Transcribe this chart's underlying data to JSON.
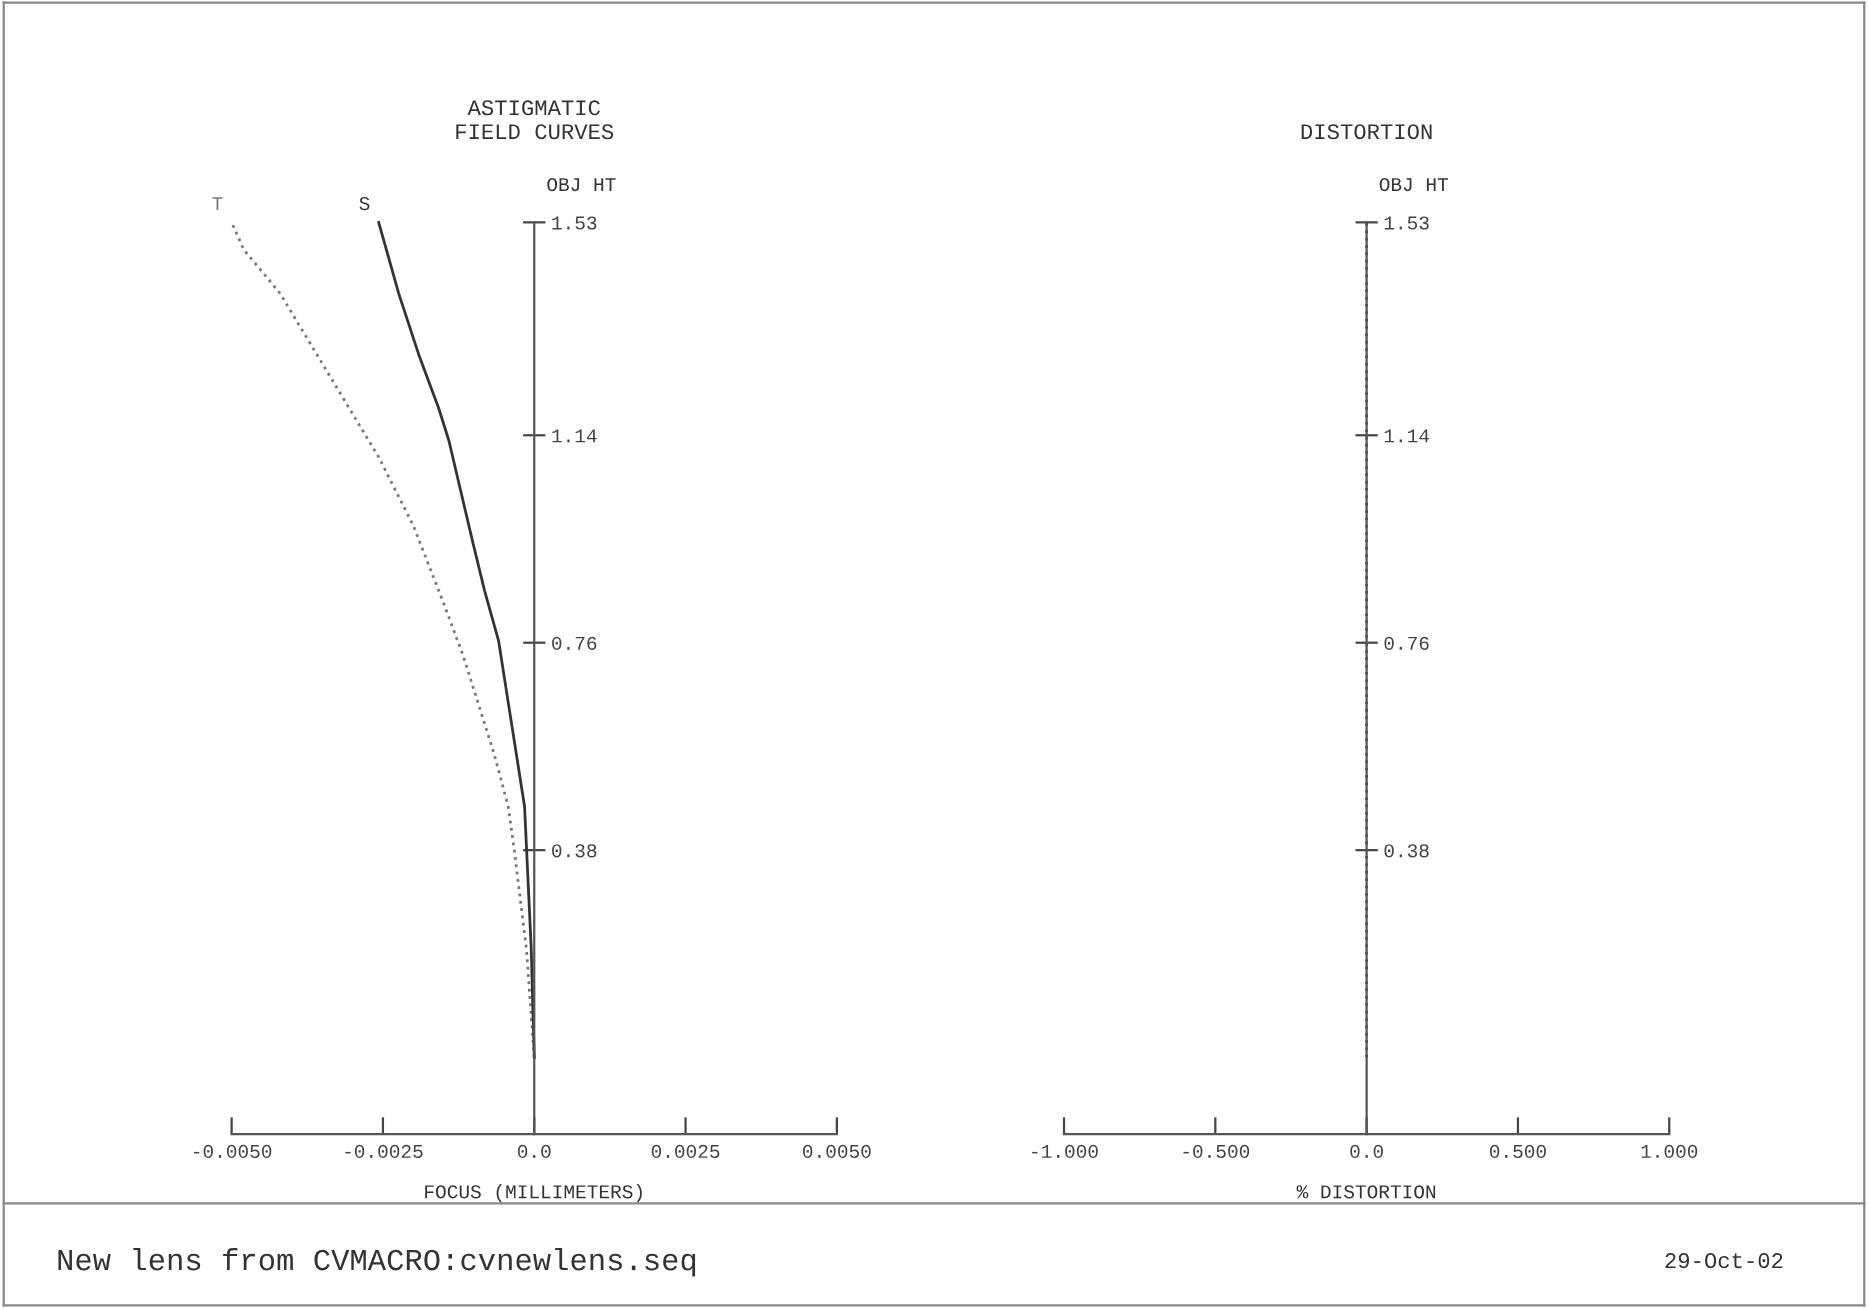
{
  "chart_data": [
    {
      "type": "line",
      "title": "ASTIGMATIC\nFIELD CURVES",
      "xlabel": "FOCUS (MILLIMETERS)",
      "ylabel": "OBJ HT",
      "xlim": [
        -0.005,
        0.005
      ],
      "xticks": [
        {
          "value": -0.005,
          "label": "-0.0050"
        },
        {
          "value": -0.0025,
          "label": "-0.0025"
        },
        {
          "value": 0,
          "label": "0.0"
        },
        {
          "value": 0.0025,
          "label": "0.0025"
        },
        {
          "value": 0.005,
          "label": "0.0050"
        }
      ],
      "ylim": [
        -0.14,
        1.53
      ],
      "yticks": [
        0.38,
        0.76,
        1.14,
        1.53
      ],
      "grid": false,
      "legend": false,
      "marker": "none",
      "series": [
        {
          "name": "T",
          "color": "#777777",
          "line_style": "dotted",
          "x": [
            0,
            -0.00013,
            -0.00033,
            -0.00043,
            -0.00066,
            -0.00092,
            -0.00118,
            -0.00151,
            -0.002,
            -0.00257,
            -0.00306,
            -0.0042,
            -0.0048,
            -0.005
          ],
          "values": [
            0,
            0.2,
            0.38,
            0.46,
            0.555,
            0.647,
            0.738,
            0.836,
            0.975,
            1.1,
            1.19,
            1.4,
            1.48,
            1.53
          ]
        },
        {
          "name": "S",
          "color": "#333333",
          "line_style": "solid",
          "x": [
            0,
            -5e-05,
            -0.00016,
            -0.00059,
            -0.00082,
            -0.00102,
            -0.00141,
            -0.00158,
            -0.0019,
            -0.00224,
            -0.00257
          ],
          "values": [
            0,
            0.2,
            0.46,
            0.764,
            0.855,
            0.946,
            1.13,
            1.19,
            1.285,
            1.4,
            1.53
          ]
        }
      ],
      "annotations": [
        "New lens from CVMACRO:cvnewlens.seq",
        "29-Oct-02"
      ]
    },
    {
      "type": "line",
      "title": "DISTORTION",
      "xlabel": "% DISTORTION",
      "ylabel": "OBJ HT",
      "xlim": [
        -1,
        1
      ],
      "xticks": [
        {
          "value": -1,
          "label": "-1.000"
        },
        {
          "value": -0.5,
          "label": "-0.500"
        },
        {
          "value": 0,
          "label": "0.0"
        },
        {
          "value": 0.5,
          "label": "0.500"
        },
        {
          "value": 1,
          "label": "1.000"
        }
      ],
      "ylim": [
        -0.14,
        1.53
      ],
      "yticks": [
        0.38,
        0.76,
        1.14,
        1.53
      ],
      "grid": false,
      "legend": false,
      "marker": "none",
      "series": [
        {
          "color": "#555555",
          "line_style": "dotted",
          "x": [
            0,
            0,
            0,
            0,
            0
          ],
          "values": [
            0,
            0.38,
            0.76,
            1.14,
            1.53
          ]
        }
      ]
    }
  ]
}
